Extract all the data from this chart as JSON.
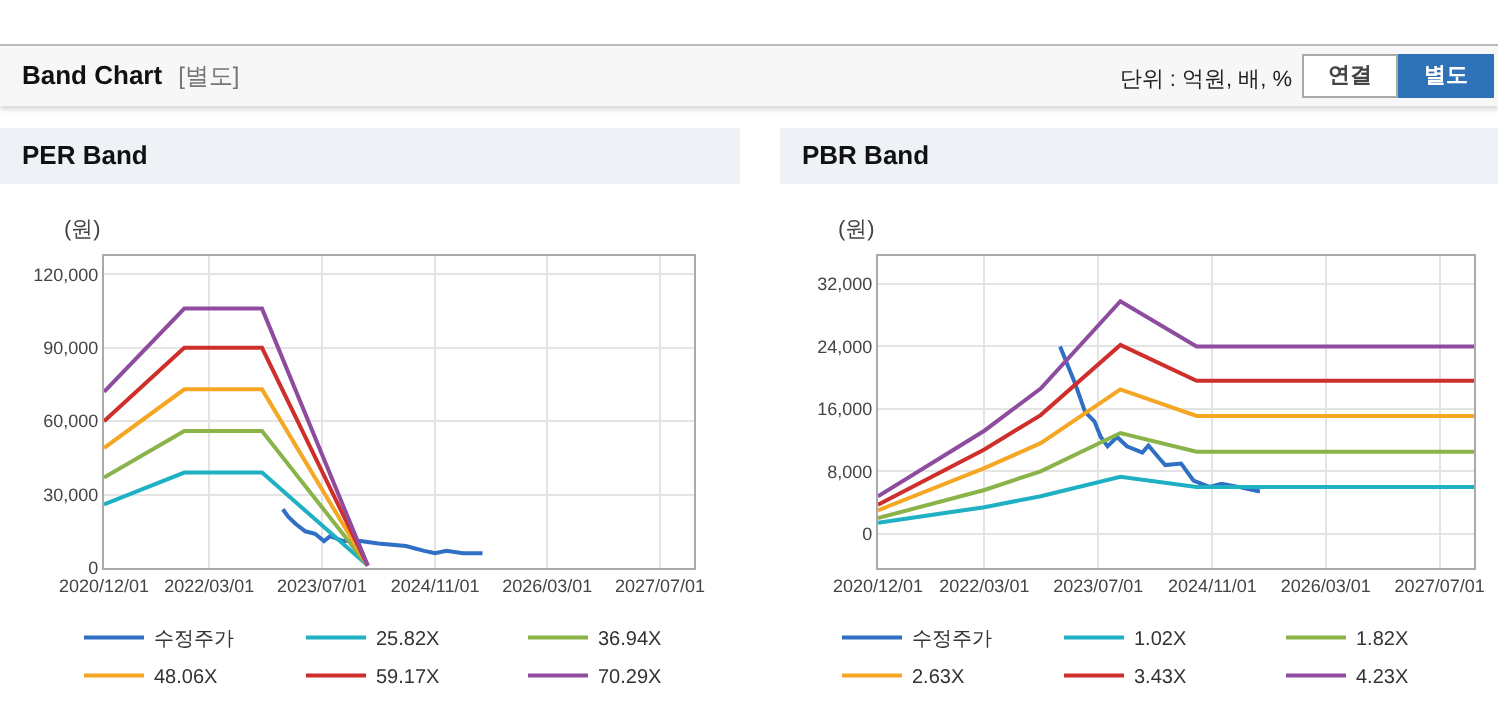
{
  "chart_data": [
    {
      "type": "other",
      "title": "Band Chart",
      "subtitle": "[별도]",
      "annotations": [
        "단위 : 억원, 배, %",
        "연결",
        "별도"
      ]
    },
    {
      "type": "line",
      "title": "PER Band",
      "ylabel": "(원)",
      "xlim": [
        "2020-12-01",
        "2027-11-25"
      ],
      "ylim": [
        0,
        127500
      ],
      "xticks": [
        {
          "value": "2020-12-01",
          "label": "2020/12/01"
        },
        {
          "value": "2022-03-01",
          "label": "2022/03/01"
        },
        {
          "value": "2023-07-01",
          "label": "2023/07/01"
        },
        {
          "value": "2024-11-01",
          "label": "2024/11/01"
        },
        {
          "value": "2026-03-01",
          "label": "2026/03/01"
        },
        {
          "value": "2027-07-01",
          "label": "2027/07/01"
        }
      ],
      "yticks": [
        {
          "value": 0,
          "label": "0"
        },
        {
          "value": 30000,
          "label": "30,000"
        },
        {
          "value": 60000,
          "label": "60,000"
        },
        {
          "value": 90000,
          "label": "90,000"
        },
        {
          "value": 120000,
          "label": "120,000"
        }
      ],
      "grid": true,
      "legend": "bottom",
      "marker": "none",
      "line_style": "solid",
      "series": [
        {
          "name": "수정주가",
          "color": "#2f6fc4",
          "x": [
            "2023-01-13",
            "2023-02-05",
            "2023-03-10",
            "2023-04-20",
            "2023-06-01",
            "2023-07-10",
            "2023-08-05",
            "2023-10-01",
            "2023-12-15",
            "2024-03-01",
            "2024-06-28",
            "2024-09-15",
            "2024-11-01",
            "2024-12-20",
            "2025-03-01",
            "2025-05-25"
          ],
          "values": [
            24000,
            21000,
            18000,
            15000,
            14000,
            11000,
            13000,
            11000,
            11000,
            10000,
            9000,
            7000,
            6000,
            7000,
            6000,
            6000
          ]
        },
        {
          "name": "25.82X",
          "color": "#1fb0c4",
          "x": [
            "2020-12-01",
            "2021-11-13",
            "2022-10-15",
            "2024-01-15"
          ],
          "values": [
            26000,
            39000,
            39000,
            1000
          ]
        },
        {
          "name": "36.94X",
          "color": "#8ab34a",
          "x": [
            "2020-12-01",
            "2021-11-13",
            "2022-10-15",
            "2024-01-15"
          ],
          "values": [
            37000,
            56000,
            56000,
            1000
          ]
        },
        {
          "name": "48.06X",
          "color": "#f5a623",
          "x": [
            "2020-12-01",
            "2021-11-13",
            "2022-10-15",
            "2024-01-15"
          ],
          "values": [
            49000,
            73000,
            73000,
            1000
          ]
        },
        {
          "name": "59.17X",
          "color": "#cf2f2a",
          "x": [
            "2020-12-01",
            "2021-11-13",
            "2022-10-15",
            "2024-01-15"
          ],
          "values": [
            60000,
            90000,
            90000,
            1000
          ]
        },
        {
          "name": "70.29X",
          "color": "#8e4c9e",
          "x": [
            "2020-12-01",
            "2021-11-13",
            "2022-10-15",
            "2024-01-15"
          ],
          "values": [
            72000,
            106000,
            106000,
            1000
          ]
        }
      ]
    },
    {
      "type": "line",
      "title": "PBR Band",
      "ylabel": "(원)",
      "xlim": [
        "2020-12-01",
        "2027-11-25"
      ],
      "ylim": [
        -4400,
        35600
      ],
      "xticks": [
        {
          "value": "2020-12-01",
          "label": "2020/12/01"
        },
        {
          "value": "2022-03-01",
          "label": "2022/03/01"
        },
        {
          "value": "2023-07-01",
          "label": "2023/07/01"
        },
        {
          "value": "2024-11-01",
          "label": "2024/11/01"
        },
        {
          "value": "2026-03-01",
          "label": "2026/03/01"
        },
        {
          "value": "2027-07-01",
          "label": "2027/07/01"
        }
      ],
      "yticks": [
        {
          "value": 0,
          "label": "0"
        },
        {
          "value": 8000,
          "label": "8,000"
        },
        {
          "value": 16000,
          "label": "16,000"
        },
        {
          "value": 24000,
          "label": "24,000"
        },
        {
          "value": 32000,
          "label": "32,000"
        }
      ],
      "grid": true,
      "legend": "bottom",
      "marker": "none",
      "line_style": "solid",
      "series": [
        {
          "name": "수정주가",
          "color": "#2f6fc4",
          "x": [
            "2023-01-19",
            "2023-02-15",
            "2023-03-25",
            "2023-05-06",
            "2023-06-15",
            "2023-07-12",
            "2023-08-10",
            "2023-09-20",
            "2023-11-01",
            "2024-01-06",
            "2024-02-01",
            "2024-03-20",
            "2024-04-13",
            "2024-06-20",
            "2024-08-12",
            "2024-10-19",
            "2024-12-10",
            "2025-02-19",
            "2025-05-23"
          ],
          "values": [
            24000,
            22000,
            19200,
            15600,
            14400,
            12400,
            11200,
            12400,
            11200,
            10400,
            11300,
            9600,
            8800,
            9000,
            6800,
            6000,
            6400,
            6000,
            5400
          ]
        },
        {
          "name": "1.02X",
          "color": "#1fb0c4",
          "x": [
            "2020-12-01",
            "2022-03-01",
            "2022-10-28",
            "2023-10-04",
            "2024-08-25",
            "2027-11-25"
          ],
          "values": [
            1400,
            3400,
            4800,
            7300,
            6000,
            6000
          ]
        },
        {
          "name": "1.82X",
          "color": "#8ab34a",
          "x": [
            "2020-12-01",
            "2022-03-01",
            "2022-10-28",
            "2023-10-04",
            "2024-08-25",
            "2027-11-25"
          ],
          "values": [
            2000,
            5600,
            8000,
            12900,
            10500,
            10500
          ]
        },
        {
          "name": "2.63X",
          "color": "#f5a623",
          "x": [
            "2020-12-01",
            "2022-03-01",
            "2022-10-28",
            "2023-10-04",
            "2024-08-25",
            "2027-11-25"
          ],
          "values": [
            3000,
            8400,
            11600,
            18500,
            15100,
            15100
          ]
        },
        {
          "name": "3.43X",
          "color": "#cf2f2a",
          "x": [
            "2020-12-01",
            "2022-03-01",
            "2022-10-28",
            "2023-10-04",
            "2024-08-25",
            "2027-11-25"
          ],
          "values": [
            3700,
            10800,
            15200,
            24200,
            19600,
            19600
          ]
        },
        {
          "name": "4.23X",
          "color": "#8e4c9e",
          "x": [
            "2020-12-01",
            "2022-03-01",
            "2022-10-28",
            "2023-10-04",
            "2024-08-25",
            "2027-11-25"
          ],
          "values": [
            4800,
            13200,
            18600,
            29800,
            24000,
            24000
          ]
        }
      ]
    }
  ]
}
